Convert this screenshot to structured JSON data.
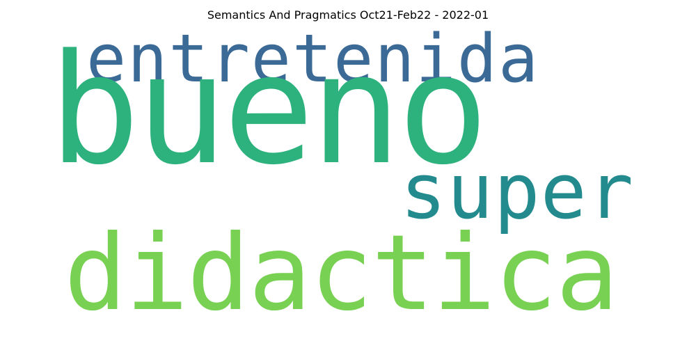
{
  "title": "Semantics And Pragmatics Oct21-Feb22 - 2022-01",
  "words": [
    {
      "text": "entretenida",
      "color": "#3b6a96"
    },
    {
      "text": "bueno",
      "color": "#2db27d"
    },
    {
      "text": "super",
      "color": "#238b8d"
    },
    {
      "text": "didactica",
      "color": "#78d152"
    }
  ]
}
